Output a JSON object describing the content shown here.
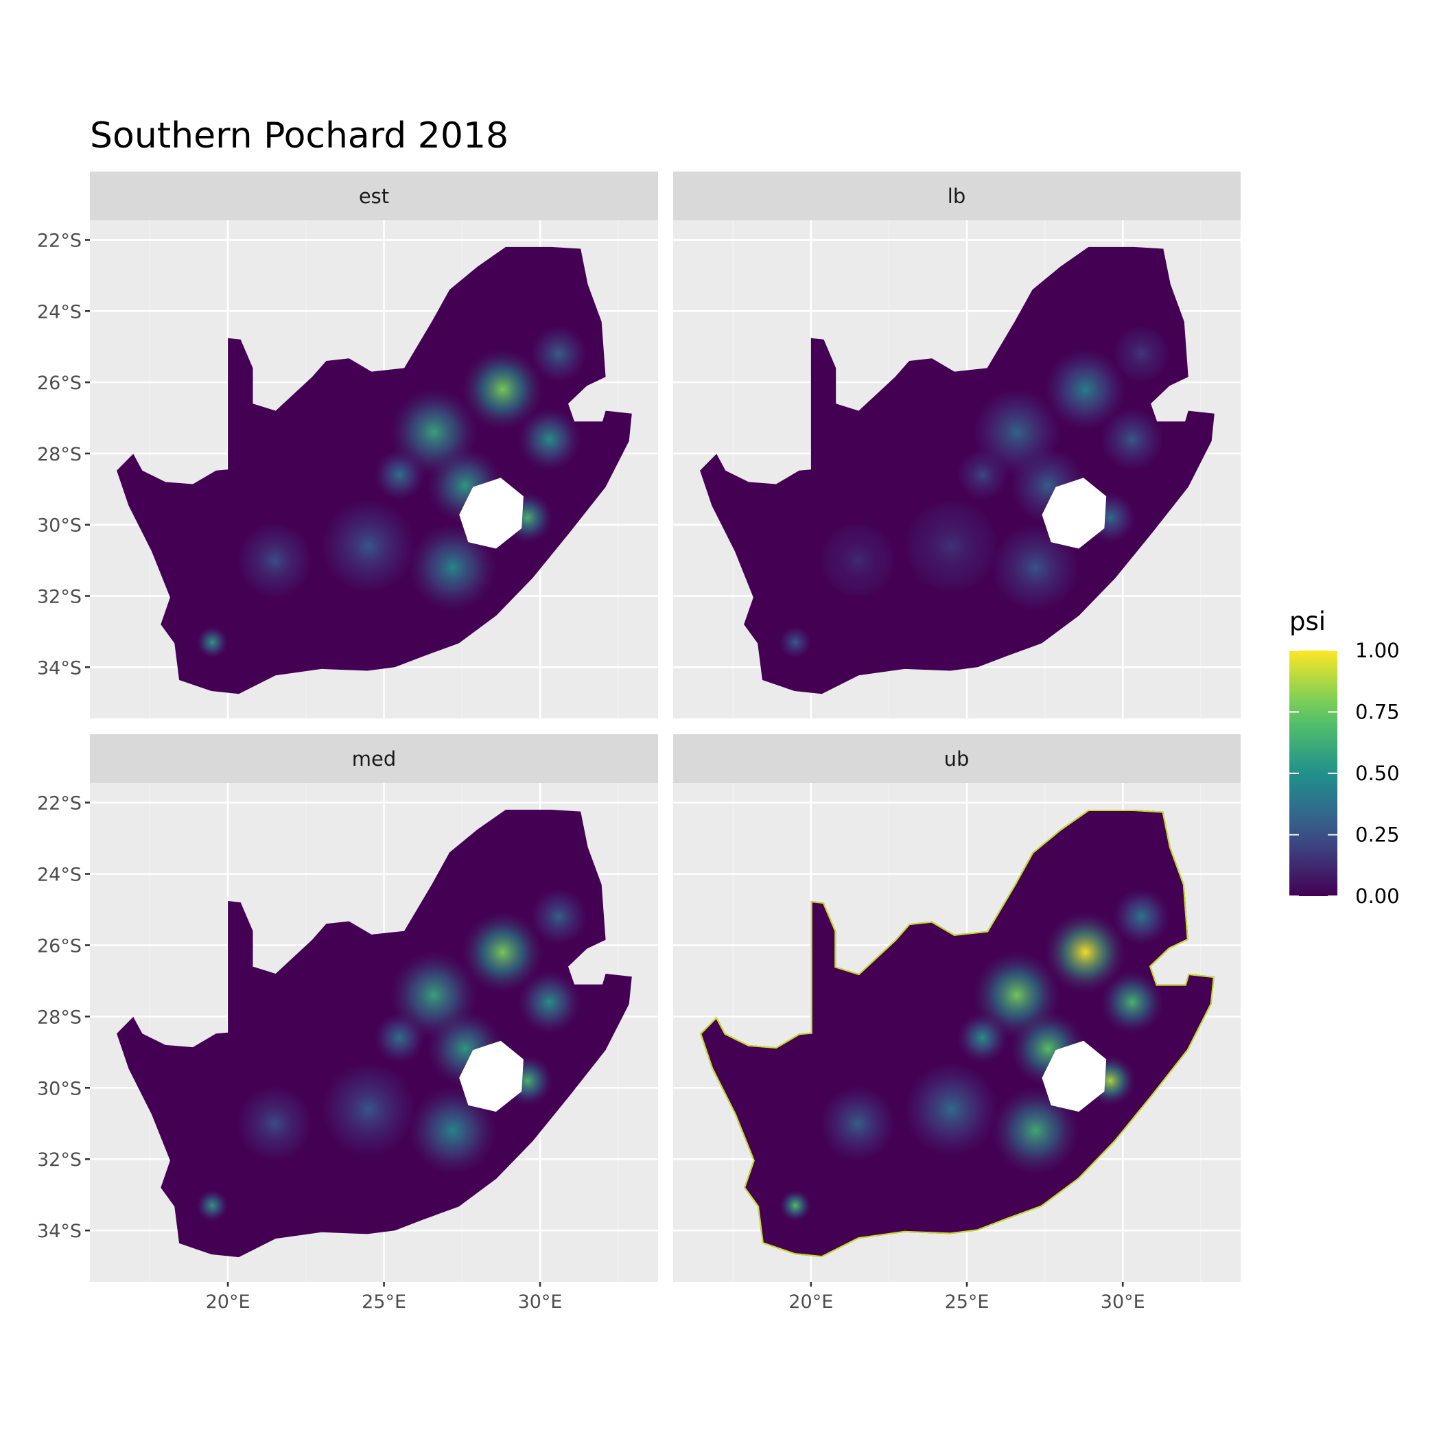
{
  "title": "Southern Pochard 2018",
  "facets": [
    "est",
    "lb",
    "med",
    "ub"
  ],
  "x_axis": {
    "ticks": [
      20,
      25,
      30
    ],
    "tick_labels": [
      "20°E",
      "25°E",
      "30°E"
    ],
    "range": [
      15.58,
      33.78
    ]
  },
  "y_axis": {
    "ticks": [
      -22,
      -24,
      -26,
      -28,
      -30,
      -32,
      -34
    ],
    "tick_labels": [
      "22°S",
      "24°S",
      "26°S",
      "28°S",
      "30°S",
      "32°S",
      "34°S"
    ],
    "range": [
      -35.44,
      -21.45
    ]
  },
  "legend": {
    "title": "psi",
    "ticks": [
      1.0,
      0.75,
      0.5,
      0.25,
      0.0
    ],
    "tick_labels": [
      "1.00",
      "0.75",
      "0.50",
      "0.25",
      "0.00"
    ],
    "palette": "viridis",
    "colors": [
      "#440154",
      "#3b528b",
      "#21918c",
      "#5ec962",
      "#fde725"
    ]
  },
  "colors": {
    "panel_bg": "#ebebeb",
    "grid": "#ffffff",
    "strip_bg": "#d9d9d9",
    "lesotho": "#ffffff"
  }
}
